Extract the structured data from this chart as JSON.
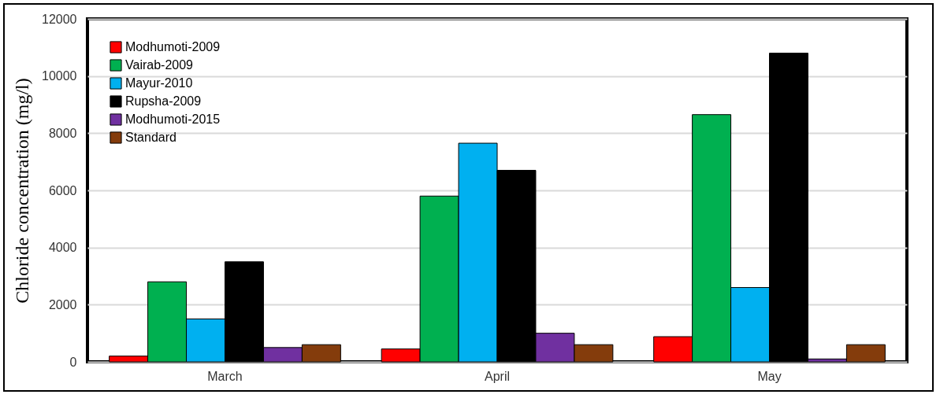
{
  "chart_data": {
    "type": "bar",
    "ylabel": "Chloride concentration (mg/l)",
    "categories": [
      "March",
      "April",
      "May"
    ],
    "series": [
      {
        "name": "Modhumoti-2009",
        "color": "#ff0000",
        "values": [
          200,
          450,
          880
        ]
      },
      {
        "name": "Vairab-2009",
        "color": "#00b050",
        "values": [
          2800,
          5800,
          8650
        ]
      },
      {
        "name": "Mayur-2010",
        "color": "#00b0f0",
        "values": [
          1500,
          7650,
          2600
        ]
      },
      {
        "name": "Rupsha-2009",
        "color": "#000000",
        "values": [
          3500,
          6700,
          10800
        ]
      },
      {
        "name": "Modhumoti-2015",
        "color": "#7030a0",
        "values": [
          500,
          1000,
          100
        ]
      },
      {
        "name": "Standard",
        "color": "#843c0c",
        "values": [
          600,
          600,
          600
        ]
      }
    ],
    "ylim": [
      0,
      12000
    ],
    "yticks": [
      0,
      2000,
      4000,
      6000,
      8000,
      10000,
      12000
    ],
    "grid": "y",
    "legend": "top left"
  }
}
